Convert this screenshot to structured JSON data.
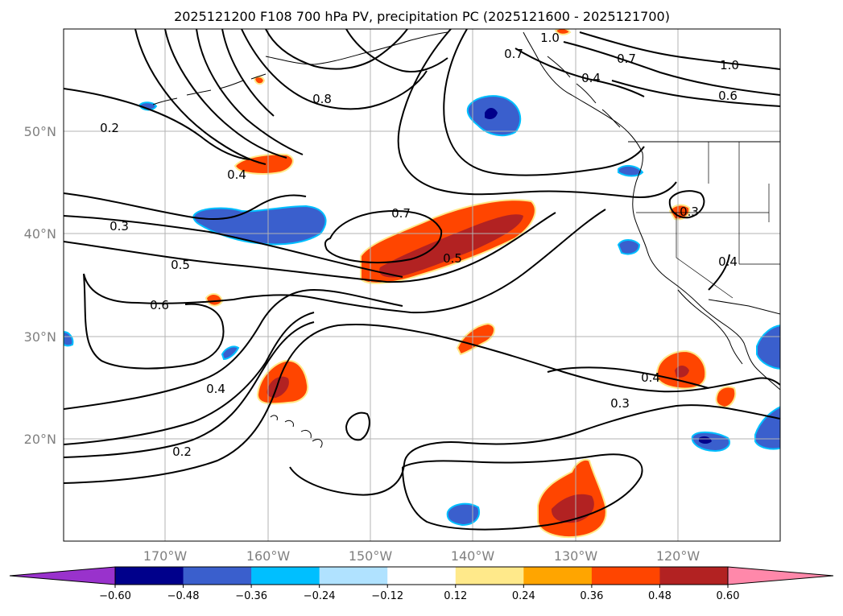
{
  "title": "2025121200 F108 700 hPa PV, precipitation PC (2025121600 - 2025121700)",
  "latitude_labels": [
    "50°N",
    "40°N",
    "30°N",
    "20°N"
  ],
  "longitude_labels": [
    "170°W",
    "160°W",
    "150°W",
    "140°W",
    "130°W",
    "120°W"
  ],
  "contour_labels": [
    "1.0",
    "0.7",
    "1.0",
    "0.8",
    "0.7",
    "0.6",
    "0.4",
    "0.2",
    "0.4",
    "0.3",
    "0.7",
    "0.5",
    "0.5",
    "0.6",
    "0.4",
    "0.2",
    "0.4",
    "0.3",
    "0.3",
    "0.4"
  ],
  "colorbar": {
    "tick_labels": [
      "−0.60",
      "−0.48",
      "−0.36",
      "−0.24",
      "−0.12",
      "0.12",
      "0.24",
      "0.36",
      "0.48",
      "0.60"
    ],
    "colors": [
      "#9932cc",
      "#00008b",
      "#3a5fcd",
      "#00bfff",
      "#b0e2ff",
      "#ffffff",
      "#ffe98a",
      "#ffa500",
      "#ff4500",
      "#b22222",
      "#ff88aa"
    ]
  }
}
